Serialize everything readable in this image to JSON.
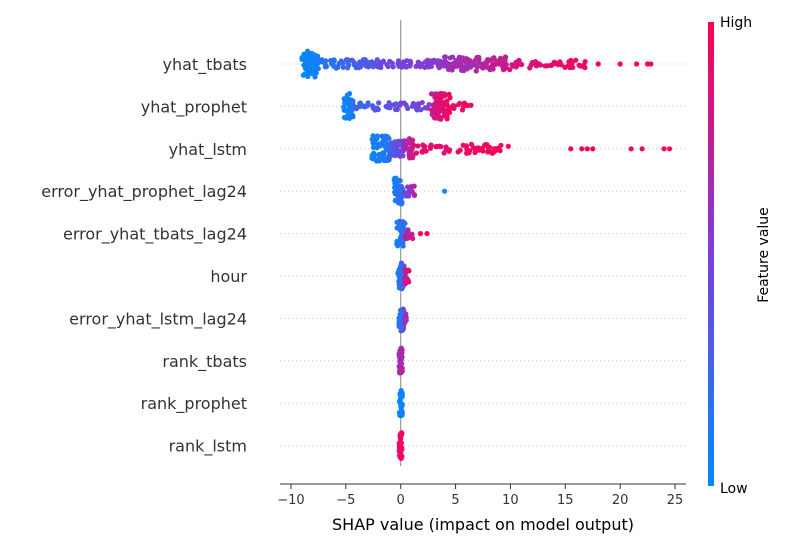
{
  "chart_data": {
    "type": "scatter",
    "subtype": "shap-beeswarm",
    "title": "",
    "xlabel": "SHAP value (impact on model output)",
    "xlim": [
      -11,
      26
    ],
    "xticks": [
      -10,
      -5,
      0,
      5,
      10,
      15,
      20,
      25
    ],
    "colorbar": {
      "label": "Feature value",
      "high_label": "High",
      "low_label": "Low",
      "low_color": "#008bfb",
      "mid_color": "#7c3fd9",
      "high_color": "#ff0052"
    },
    "features": [
      {
        "name": "yhat_tbats",
        "segments": [
          {
            "x0": -9.0,
            "x1": -7.5,
            "n": 60,
            "spread": 1.0,
            "c0": 0.0,
            "c1": 0.1
          },
          {
            "x0": -7.5,
            "x1": -2.0,
            "n": 70,
            "spread": 0.35,
            "c0": 0.1,
            "c1": 0.4
          },
          {
            "x0": -2.0,
            "x1": 4.0,
            "n": 60,
            "spread": 0.3,
            "c0": 0.4,
            "c1": 0.6
          },
          {
            "x0": 4.0,
            "x1": 10.0,
            "n": 90,
            "spread": 0.55,
            "c0": 0.55,
            "c1": 0.85
          },
          {
            "x0": 10.0,
            "x1": 17.0,
            "n": 40,
            "spread": 0.3,
            "c0": 0.8,
            "c1": 1.0
          }
        ],
        "outliers": [
          [
            18.0,
            1.0
          ],
          [
            20.0,
            1.0
          ],
          [
            21.5,
            1.0
          ],
          [
            22.5,
            1.0
          ],
          [
            22.8,
            1.0
          ]
        ]
      },
      {
        "name": "yhat_prophet",
        "segments": [
          {
            "x0": -5.2,
            "x1": -4.3,
            "n": 40,
            "spread": 1.0,
            "c0": 0.0,
            "c1": 0.15
          },
          {
            "x0": -4.3,
            "x1": 2.8,
            "n": 55,
            "spread": 0.3,
            "c0": 0.15,
            "c1": 0.6
          },
          {
            "x0": 2.8,
            "x1": 4.5,
            "n": 80,
            "spread": 1.0,
            "c0": 0.75,
            "c1": 1.0
          },
          {
            "x0": 4.5,
            "x1": 6.5,
            "n": 12,
            "spread": 0.3,
            "c0": 0.85,
            "c1": 1.0
          }
        ],
        "outliers": []
      },
      {
        "name": "yhat_lstm",
        "segments": [
          {
            "x0": -2.7,
            "x1": -1.0,
            "n": 60,
            "spread": 1.0,
            "c0": 0.0,
            "c1": 0.2
          },
          {
            "x0": -1.0,
            "x1": 0.3,
            "n": 35,
            "spread": 0.6,
            "c0": 0.2,
            "c1": 0.55
          },
          {
            "x0": 0.3,
            "x1": 1.2,
            "n": 30,
            "spread": 0.8,
            "c0": 0.6,
            "c1": 0.85
          },
          {
            "x0": 1.2,
            "x1": 10.0,
            "n": 60,
            "spread": 0.35,
            "c0": 0.85,
            "c1": 1.0
          }
        ],
        "outliers": [
          [
            15.5,
            1.0
          ],
          [
            16.5,
            1.0
          ],
          [
            17.0,
            1.0
          ],
          [
            17.5,
            1.0
          ],
          [
            21.0,
            1.0
          ],
          [
            22.0,
            1.0
          ],
          [
            24.0,
            1.0
          ],
          [
            24.5,
            1.0
          ]
        ]
      },
      {
        "name": "error_yhat_prophet_lag24",
        "segments": [
          {
            "x0": -0.6,
            "x1": 0.3,
            "n": 35,
            "spread": 1.0,
            "c0": 0.0,
            "c1": 0.3
          },
          {
            "x0": 0.3,
            "x1": 1.3,
            "n": 15,
            "spread": 0.4,
            "c0": 0.3,
            "c1": 0.8
          }
        ],
        "outliers": [
          [
            4.0,
            0.0
          ]
        ]
      },
      {
        "name": "error_yhat_tbats_lag24",
        "segments": [
          {
            "x0": -0.4,
            "x1": 0.4,
            "n": 35,
            "spread": 1.0,
            "c0": 0.0,
            "c1": 0.3
          },
          {
            "x0": 0.4,
            "x1": 1.2,
            "n": 12,
            "spread": 0.4,
            "c0": 0.6,
            "c1": 0.9
          }
        ],
        "outliers": [
          [
            1.8,
            1.0
          ],
          [
            2.4,
            1.0
          ]
        ]
      },
      {
        "name": "hour",
        "segments": [
          {
            "x0": -0.3,
            "x1": 0.3,
            "n": 30,
            "spread": 1.0,
            "c0": 0.0,
            "c1": 0.4
          },
          {
            "x0": 0.3,
            "x1": 0.8,
            "n": 15,
            "spread": 0.6,
            "c0": 0.7,
            "c1": 1.0
          }
        ],
        "outliers": []
      },
      {
        "name": "error_yhat_lstm_lag24",
        "segments": [
          {
            "x0": -0.2,
            "x1": 0.3,
            "n": 30,
            "spread": 1.0,
            "c0": 0.0,
            "c1": 0.5
          },
          {
            "x0": 0.3,
            "x1": 0.6,
            "n": 8,
            "spread": 0.4,
            "c0": 0.5,
            "c1": 0.8
          }
        ],
        "outliers": []
      },
      {
        "name": "rank_tbats",
        "segments": [
          {
            "x0": -0.15,
            "x1": 0.15,
            "n": 36,
            "spread": 1.0,
            "c0": 0.6,
            "c1": 0.75
          }
        ],
        "outliers": []
      },
      {
        "name": "rank_prophet",
        "segments": [
          {
            "x0": -0.15,
            "x1": 0.15,
            "n": 36,
            "spread": 1.0,
            "c0": 0.0,
            "c1": 0.1
          }
        ],
        "outliers": []
      },
      {
        "name": "rank_lstm",
        "segments": [
          {
            "x0": -0.15,
            "x1": 0.15,
            "n": 36,
            "spread": 1.0,
            "c0": 0.9,
            "c1": 1.0
          }
        ],
        "outliers": []
      }
    ]
  }
}
